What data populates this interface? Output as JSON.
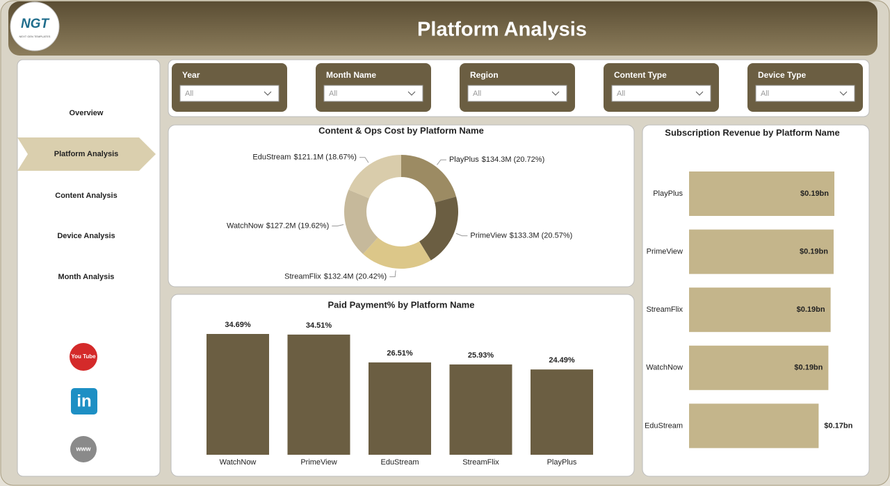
{
  "header": {
    "title": "Platform Analysis",
    "logo": "NGT",
    "logo_subtitle": "NEXT GEN TEMPLATES"
  },
  "nav": {
    "items": [
      "Overview",
      "Platform Analysis",
      "Content Analysis",
      "Device Analysis",
      "Month Analysis"
    ],
    "active": 1
  },
  "social": [
    "You Tube",
    "in",
    "www"
  ],
  "filters": [
    {
      "label": "Year",
      "value": "All"
    },
    {
      "label": "Month Name",
      "value": "All"
    },
    {
      "label": "Region",
      "value": "All"
    },
    {
      "label": "Content Type",
      "value": "All"
    },
    {
      "label": "Device Type",
      "value": "All"
    }
  ],
  "chart_data": [
    {
      "type": "donut",
      "title": "Content & Ops Cost by Platform Name",
      "categories": [
        "PlayPlus",
        "PrimeView",
        "StreamFlix",
        "WatchNow",
        "EduStream"
      ],
      "values": [
        134.3,
        133.3,
        132.4,
        127.2,
        121.1
      ],
      "value_labels": [
        "$134.3M (20.72%)",
        "$133.3M (20.57%)",
        "$132.4M (20.42%)",
        "$127.2M (19.62%)",
        "$121.1M (18.67%)"
      ],
      "colors": [
        "#9c8b63",
        "#6b5e42",
        "#dcc789",
        "#c6b99b",
        "#d9ccab"
      ]
    },
    {
      "type": "bar",
      "title": "Paid Payment% by Platform Name",
      "categories": [
        "WatchNow",
        "PrimeView",
        "EduStream",
        "StreamFlix",
        "PlayPlus"
      ],
      "values": [
        34.69,
        34.51,
        26.51,
        25.93,
        24.49
      ],
      "value_labels": [
        "34.69%",
        "34.51%",
        "26.51%",
        "25.93%",
        "24.49%"
      ],
      "color": "#6b5e42"
    },
    {
      "type": "hbar",
      "title": "Subscription Revenue by Platform Name",
      "categories": [
        "PlayPlus",
        "PrimeView",
        "StreamFlix",
        "WatchNow",
        "EduStream"
      ],
      "values": [
        0.194,
        0.193,
        0.189,
        0.186,
        0.173
      ],
      "value_labels": [
        "$0.19bn",
        "$0.19bn",
        "$0.19bn",
        "$0.19bn",
        "$0.17bn"
      ],
      "color": "#c4b58b"
    }
  ]
}
